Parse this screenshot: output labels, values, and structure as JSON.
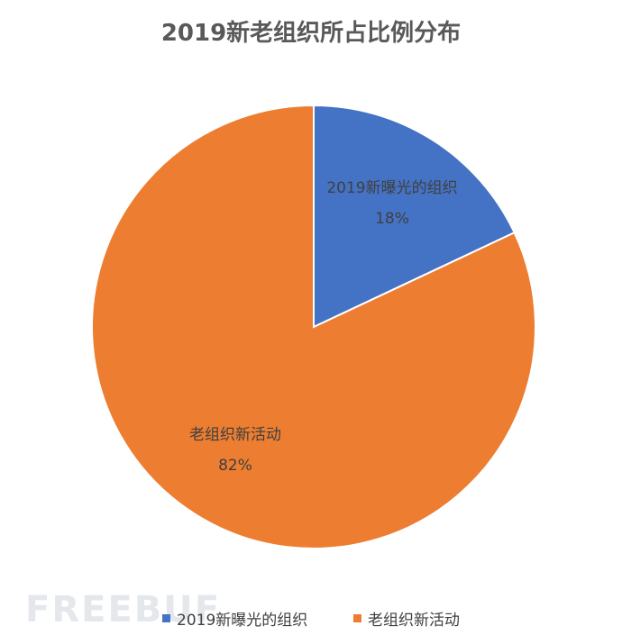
{
  "chart_data": {
    "type": "pie",
    "title": "2019新老组织所占比例分布",
    "categories": [
      "2019新曝光的组织",
      "老组织新活动"
    ],
    "values": [
      18,
      82
    ],
    "value_labels": [
      "18%",
      "82%"
    ],
    "colors": [
      "#4472c4",
      "#ed7d31"
    ],
    "legend": "bottom"
  },
  "watermark": "FREEBUF"
}
